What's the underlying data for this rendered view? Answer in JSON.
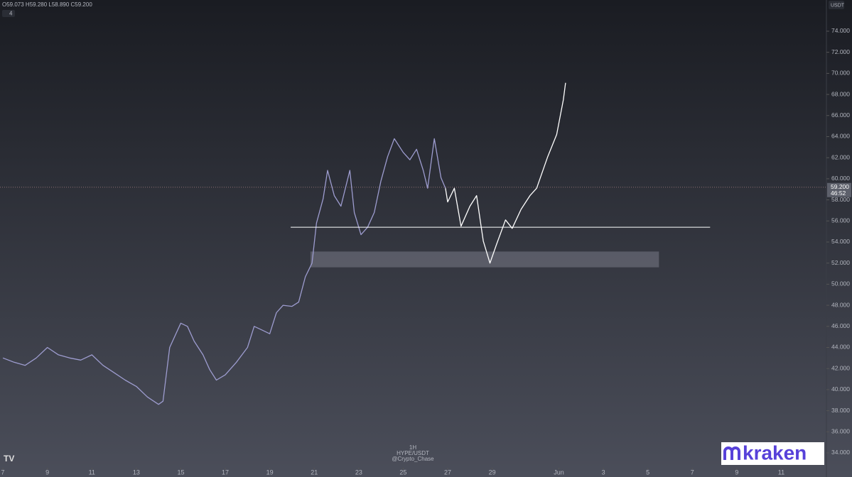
{
  "chart_data": {
    "type": "line",
    "ohlc": "O59.073 H59.280 L58.890 C59.200",
    "collapse_label": "4",
    "currency": "USDT",
    "interval": "1H",
    "symbol": "HYPE/USDT",
    "author": "@Crypto_Chase",
    "logo": "kraken",
    "last_price": {
      "value": 59.2,
      "label": "59.200"
    },
    "countdown": "46:52",
    "xlim": [
      6.87,
      44.03
    ],
    "ylim": [
      32.72,
      76.96
    ],
    "xticks": [
      7,
      9,
      11,
      13,
      15,
      17,
      19,
      21,
      23,
      25,
      27,
      29,
      {
        "value": 32,
        "label": "Jun"
      },
      {
        "value": 34,
        "label": "3"
      },
      {
        "value": 36,
        "label": "5"
      },
      {
        "value": 38,
        "label": "7"
      },
      {
        "value": 40,
        "label": "9"
      },
      {
        "value": 42,
        "label": "11"
      }
    ],
    "yticks": [
      {
        "value": 34,
        "label": "34.000"
      },
      {
        "value": 36,
        "label": "36.000"
      },
      {
        "value": 38,
        "label": "38.000"
      },
      {
        "value": 40,
        "label": "40.000"
      },
      {
        "value": 42,
        "label": "42.000"
      },
      {
        "value": 44,
        "label": "44.000"
      },
      {
        "value": 46,
        "label": "46.000"
      },
      {
        "value": 48,
        "label": "48.000"
      },
      {
        "value": 50,
        "label": "50.000"
      },
      {
        "value": 52,
        "label": "52.000"
      },
      {
        "value": 54,
        "label": "54.000"
      },
      {
        "value": 56,
        "label": "56.000"
      },
      {
        "value": 58,
        "label": "58.000"
      },
      {
        "value": 60,
        "label": "60.000"
      },
      {
        "value": 62,
        "label": "62.000"
      },
      {
        "value": 64,
        "label": "64.000"
      },
      {
        "value": 66,
        "label": "66.000"
      },
      {
        "value": 68,
        "label": "68.000"
      },
      {
        "value": 70,
        "label": "70.000"
      },
      {
        "value": 72,
        "label": "72.000"
      },
      {
        "value": 74,
        "label": "74.000"
      }
    ],
    "series": [
      {
        "color": "#9d9ccf",
        "x": [
          7,
          7.5,
          8,
          8.5,
          9,
          9.5,
          10,
          10.5,
          11,
          11.5,
          12,
          12.5,
          13,
          13.5,
          14,
          14.2,
          14.5,
          15,
          15.3,
          15.6,
          16,
          16.3,
          16.6,
          17,
          17.5,
          18,
          18.3,
          18.6,
          19,
          19.3,
          19.6,
          20,
          20.3,
          20.6,
          20.9,
          21.1,
          21.4,
          21.6,
          21.9,
          22.2,
          22.6,
          22.8,
          23.1,
          23.4,
          23.7,
          24,
          24.3,
          24.6,
          25,
          25.3,
          25.6,
          25.9,
          26.1,
          26.4,
          26.7,
          26.9
        ],
        "values": [
          43.0,
          42.6,
          42.3,
          43.0,
          44.0,
          43.3,
          43.0,
          42.8,
          43.3,
          42.3,
          41.6,
          40.9,
          40.3,
          39.3,
          38.6,
          38.9,
          44.0,
          46.3,
          46.0,
          44.6,
          43.3,
          41.9,
          40.9,
          41.4,
          42.6,
          44.0,
          46.0,
          45.7,
          45.3,
          47.3,
          48.0,
          47.9,
          48.3,
          50.7,
          52.0,
          55.8,
          58.1,
          60.8,
          58.4,
          57.4,
          60.8,
          56.8,
          54.7,
          55.4,
          56.8,
          59.8,
          62.1,
          63.8,
          62.5,
          61.8,
          62.8,
          60.8,
          59.1,
          63.8,
          60.1,
          59.1
        ]
      },
      {
        "color": "#ffffff",
        "x": [
          26.9,
          27.0,
          27.3,
          27.6,
          28.0,
          28.3,
          28.6,
          28.9,
          29.2,
          29.6,
          29.9,
          30.3,
          30.7,
          31.0,
          31.5,
          31.9,
          32.2,
          32.3
        ],
        "values": [
          59.1,
          57.8,
          59.1,
          55.5,
          57.4,
          58.4,
          54.1,
          52.0,
          53.8,
          56.1,
          55.3,
          57.1,
          58.4,
          59.1,
          62.1,
          64.2,
          67.5,
          69.1
        ]
      }
    ],
    "level": {
      "value": 55.4,
      "x": [
        19.94,
        38.8
      ]
    },
    "zone": {
      "y": [
        51.6,
        53.1
      ],
      "x": [
        20.83,
        36.5
      ]
    }
  }
}
